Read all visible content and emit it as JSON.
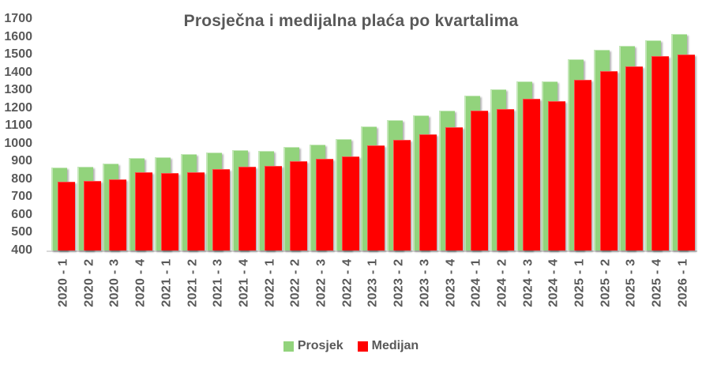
{
  "chart_data": {
    "type": "bar",
    "title": "Prosječna i medijalna plaća po kvartalima",
    "categories": [
      "2020 - 1",
      "2020 - 2",
      "2020 - 3",
      "2020 - 4",
      "2021 - 1",
      "2021 - 2",
      "2021 - 3",
      "2021 - 4",
      "2022 - 1",
      "2022 - 2",
      "2022 - 3",
      "2022 - 4",
      "2023 - 1",
      "2023 - 2",
      "2023 - 3",
      "2023 - 4",
      "2024 - 1",
      "2024 - 2",
      "2024 - 3",
      "2024 - 4",
      "2025 - 1",
      "2025 - 2",
      "2025 - 3",
      "2025 - 4",
      "2026 - 1"
    ],
    "series": [
      {
        "name": "Prosjek",
        "color": "#92d37c",
        "values": [
          865,
          870,
          890,
          920,
          925,
          940,
          950,
          965,
          960,
          980,
          995,
          1025,
          1095,
          1130,
          1160,
          1185,
          1270,
          1305,
          1350,
          1350,
          1475,
          1525,
          1550,
          1580,
          1615
        ]
      },
      {
        "name": "Medijan",
        "color": "#ff0000",
        "values": [
          785,
          790,
          800,
          840,
          835,
          840,
          855,
          870,
          875,
          900,
          915,
          930,
          990,
          1020,
          1050,
          1090,
          1185,
          1195,
          1250,
          1240,
          1360,
          1405,
          1435,
          1490,
          1500
        ]
      }
    ],
    "ylim": [
      400,
      1700
    ],
    "yticks": [
      400,
      500,
      600,
      700,
      800,
      900,
      1000,
      1100,
      1200,
      1300,
      1400,
      1500,
      1600,
      1700
    ],
    "grid": false,
    "legend_position": "bottom",
    "bar_style": "overlapped-3d-shadow",
    "axis_text_color": "#595959",
    "axis_line_color": "#d9d9d9",
    "background_color": "#ffffff"
  }
}
